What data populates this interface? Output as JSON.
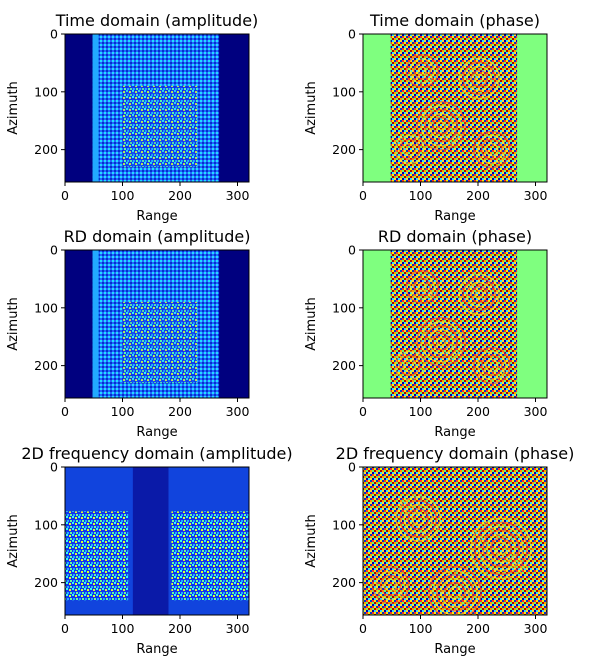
{
  "chart_data": [
    {
      "type": "heatmap",
      "title": "Time domain (amplitude)",
      "xlabel": "Range",
      "ylabel": "Azimuth",
      "xlim": [
        0,
        320
      ],
      "ylim": [
        256,
        0
      ],
      "xticks": [
        "0",
        "100",
        "200",
        "300"
      ],
      "yticks": [
        "0",
        "100",
        "200"
      ],
      "colormap": "jet",
      "data_x_extent": [
        48,
        268
      ],
      "quantity": "amplitude"
    },
    {
      "type": "heatmap",
      "title": "Time domain (phase)",
      "xlabel": "Range",
      "ylabel": "Azimuth",
      "xlim": [
        0,
        320
      ],
      "ylim": [
        256,
        0
      ],
      "xticks": [
        "0",
        "100",
        "200",
        "300"
      ],
      "yticks": [
        "0",
        "100",
        "200"
      ],
      "colormap": "jet",
      "data_x_extent": [
        48,
        268
      ],
      "quantity": "phase"
    },
    {
      "type": "heatmap",
      "title": "RD domain (amplitude)",
      "xlabel": "Range",
      "ylabel": "Azimuth",
      "xlim": [
        0,
        320
      ],
      "ylim": [
        256,
        0
      ],
      "xticks": [
        "0",
        "100",
        "200",
        "300"
      ],
      "yticks": [
        "0",
        "100",
        "200"
      ],
      "colormap": "jet",
      "data_x_extent": [
        48,
        268
      ],
      "quantity": "amplitude"
    },
    {
      "type": "heatmap",
      "title": "RD domain (phase)",
      "xlabel": "Range",
      "ylabel": "Azimuth",
      "xlim": [
        0,
        320
      ],
      "ylim": [
        256,
        0
      ],
      "xticks": [
        "0",
        "100",
        "200",
        "300"
      ],
      "yticks": [
        "0",
        "100",
        "200"
      ],
      "colormap": "jet",
      "data_x_extent": [
        48,
        268
      ],
      "quantity": "phase"
    },
    {
      "type": "heatmap",
      "title": "2D frequency domain (amplitude)",
      "xlabel": "Range",
      "ylabel": "Azimuth",
      "xlim": [
        0,
        320
      ],
      "ylim": [
        256,
        0
      ],
      "xticks": [
        "0",
        "100",
        "200",
        "300"
      ],
      "yticks": [
        "0",
        "100",
        "200"
      ],
      "colormap": "jet",
      "data_x_extent": [
        0,
        320
      ],
      "quantity": "amplitude"
    },
    {
      "type": "heatmap",
      "title": "2D frequency domain (phase)",
      "xlabel": "Range",
      "ylabel": "Azimuth",
      "xlim": [
        0,
        320
      ],
      "ylim": [
        256,
        0
      ],
      "xticks": [
        "0",
        "100",
        "200",
        "300"
      ],
      "yticks": [
        "0",
        "100",
        "200"
      ],
      "colormap": "jet",
      "data_x_extent": [
        0,
        320
      ],
      "quantity": "phase"
    }
  ],
  "colors": {
    "jet_low": "#00007f",
    "jet_mid": "#7fff7f",
    "jet_high": "#7f0000"
  }
}
